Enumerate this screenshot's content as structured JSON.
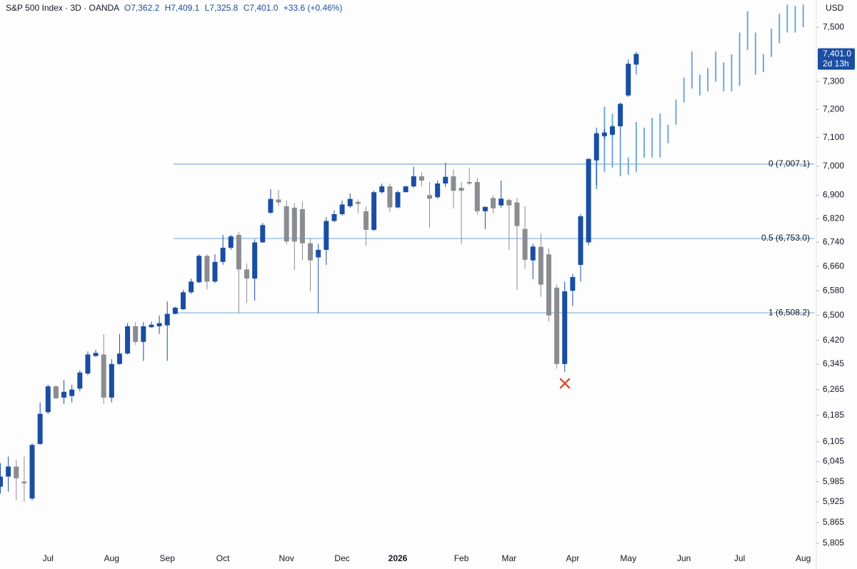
{
  "chart_data": {
    "type": "candlestick",
    "title": "S&P 500 Index · 3D · OANDA",
    "legend_values": [
      "O7,362.2",
      "H7,409.1",
      "L7,325.8",
      "C7,401.0",
      "+33.6 (+0.46%)"
    ],
    "y_unit": "USD",
    "categories": [
      null,
      null,
      null,
      null,
      null,
      null,
      "Jul",
      null,
      null,
      null,
      null,
      null,
      null,
      null,
      "Aug",
      null,
      null,
      null,
      null,
      null,
      null,
      "Sep",
      null,
      null,
      null,
      null,
      null,
      null,
      "Oct",
      null,
      null,
      null,
      null,
      null,
      null,
      null,
      "Nov",
      null,
      null,
      null,
      null,
      null,
      null,
      "Dec",
      null,
      null,
      null,
      null,
      null,
      null,
      "2026",
      null,
      null,
      null,
      null,
      null,
      null,
      null,
      "Feb",
      null,
      null,
      null,
      null,
      null,
      "Mar",
      null,
      null,
      null,
      null,
      null,
      null,
      null,
      "Apr",
      null,
      null,
      null,
      null,
      null,
      null,
      "May",
      null,
      null,
      null,
      null,
      null,
      null,
      "Jun",
      null,
      null,
      null,
      null,
      null,
      null,
      "Jul",
      null,
      null,
      null,
      null,
      null,
      null,
      null,
      "Aug"
    ],
    "open": [
      5970,
      6000,
      6030,
      5985,
      5935,
      6098,
      6195,
      6275,
      6240,
      6245,
      6268,
      6315,
      6370,
      6375,
      6240,
      6345,
      6378,
      6465,
      6415,
      6462,
      6465,
      6468,
      6505,
      6520,
      6575,
      6608,
      6695,
      6610,
      6675,
      6722,
      6765,
      6650,
      6620,
      6740,
      6840,
      6885,
      6862,
      6857,
      6852,
      6737,
      6690,
      6715,
      6812,
      6835,
      6862,
      6877,
      6845,
      6782,
      6910,
      6930,
      6858,
      6910,
      6930,
      6965,
      6900,
      6893,
      6940,
      6965,
      6925,
      6945,
      6945,
      6845,
      6890,
      6865,
      6883,
      6875,
      6785,
      6680,
      6725,
      6700,
      6590,
      6345,
      6580,
      6665,
      6740,
      7020,
      7105,
      7110,
      7140,
      7250,
      7362.2,
      null,
      null,
      null,
      null,
      null,
      null,
      null,
      null,
      null,
      null,
      null,
      null,
      null,
      null,
      null,
      null,
      null,
      null,
      null,
      null,
      null
    ],
    "high": [
      6040,
      6060,
      6050,
      6060,
      6100,
      6225,
      6280,
      6278,
      6295,
      6280,
      6325,
      6385,
      6390,
      6440,
      6360,
      6440,
      6475,
      6478,
      6478,
      6480,
      6500,
      6545,
      6528,
      6582,
      6620,
      6700,
      6700,
      6700,
      6765,
      6765,
      6775,
      6670,
      6750,
      6805,
      6920,
      6918,
      6882,
      6872,
      6878,
      6755,
      6735,
      6825,
      6848,
      6882,
      6905,
      6885,
      6862,
      6915,
      6940,
      6940,
      6915,
      6932,
      6998,
      6978,
      6945,
      6950,
      7012,
      6988,
      6945,
      6995,
      6960,
      6860,
      6900,
      6950,
      6888,
      6890,
      6862,
      6735,
      6770,
      6720,
      6600,
      6610,
      6635,
      6835,
      7028,
      7135,
      7130,
      7145,
      7225,
      7380,
      7409.1,
      null,
      null,
      null,
      null,
      null,
      null,
      null,
      null,
      null,
      null,
      null,
      null,
      null,
      null,
      null,
      null,
      null,
      null,
      null,
      null,
      null
    ],
    "low": [
      5950,
      5955,
      5930,
      5925,
      5930,
      6095,
      6190,
      6235,
      6220,
      6225,
      6260,
      6310,
      6368,
      6220,
      6225,
      6343,
      6375,
      6405,
      6355,
      6460,
      6440,
      6355,
      6503,
      6518,
      6570,
      6605,
      6585,
      6605,
      6665,
      6715,
      6508,
      6540,
      6548,
      6738,
      6836,
      6862,
      6733,
      6648,
      6680,
      6578,
      6508,
      6665,
      6808,
      6830,
      6857,
      6838,
      6728,
      6778,
      6905,
      6842,
      6855,
      6910,
      6925,
      6930,
      6790,
      6888,
      6928,
      6855,
      6733,
      6935,
      6835,
      6785,
      6838,
      6857,
      6715,
      6582,
      6652,
      6618,
      6560,
      6480,
      6330,
      6320,
      6530,
      6610,
      6730,
      6935,
      7095,
      7105,
      7105,
      7245,
      7325.8,
      null,
      null,
      null,
      null,
      null,
      null,
      null,
      null,
      null,
      null,
      null,
      null,
      null,
      null,
      null,
      null,
      null,
      null,
      null,
      null,
      null
    ],
    "close": [
      6000,
      6030,
      5995,
      5980,
      6095,
      6190,
      6275,
      6238,
      6258,
      6265,
      6318,
      6375,
      6380,
      6240,
      6345,
      6378,
      6465,
      6415,
      6465,
      6470,
      6475,
      6505,
      6525,
      6575,
      6610,
      6695,
      6610,
      6675,
      6722,
      6760,
      6650,
      6620,
      6740,
      6798,
      6887,
      6875,
      6743,
      6743,
      6737,
      6680,
      6715,
      6812,
      6835,
      6868,
      6887,
      6870,
      6782,
      6910,
      6930,
      6858,
      6910,
      6930,
      6965,
      6950,
      6888,
      6940,
      6963,
      6915,
      6915,
      6940,
      6845,
      6860,
      6855,
      6888,
      6865,
      6795,
      6682,
      6726,
      6600,
      6500,
      6345,
      6578,
      6625,
      6828,
      7025,
      7115,
      7118,
      7140,
      7220,
      7365,
      7401.0,
      null,
      null,
      null,
      null,
      null,
      null,
      null,
      null,
      null,
      null,
      null,
      null,
      null,
      null,
      null,
      null,
      null,
      null,
      null,
      null,
      null
    ],
    "up_color": "#1a4ea3",
    "down_color": "#8b8c91",
    "projection": {
      "color": "#72a7dc",
      "high": [
        null,
        null,
        null,
        null,
        null,
        null,
        null,
        null,
        null,
        null,
        null,
        null,
        null,
        null,
        null,
        null,
        null,
        null,
        null,
        null,
        null,
        null,
        null,
        null,
        null,
        null,
        null,
        null,
        null,
        null,
        null,
        null,
        null,
        null,
        null,
        null,
        null,
        null,
        null,
        null,
        null,
        null,
        null,
        null,
        null,
        null,
        null,
        null,
        null,
        null,
        null,
        null,
        null,
        null,
        null,
        null,
        null,
        null,
        null,
        null,
        null,
        null,
        null,
        null,
        null,
        null,
        null,
        null,
        null,
        null,
        null,
        null,
        null,
        null,
        null,
        7120,
        7210,
        7185,
        7105,
        7030,
        7155,
        7135,
        7170,
        7185,
        7145,
        7235,
        7315,
        7410,
        7325,
        7350,
        7410,
        7370,
        7400,
        7480,
        7560,
        7480,
        7400,
        7495,
        7550,
        7585,
        7580,
        7585
      ],
      "low": [
        null,
        null,
        null,
        null,
        null,
        null,
        null,
        null,
        null,
        null,
        null,
        null,
        null,
        null,
        null,
        null,
        null,
        null,
        null,
        null,
        null,
        null,
        null,
        null,
        null,
        null,
        null,
        null,
        null,
        null,
        null,
        null,
        null,
        null,
        null,
        null,
        null,
        null,
        null,
        null,
        null,
        null,
        null,
        null,
        null,
        null,
        null,
        null,
        null,
        null,
        null,
        null,
        null,
        null,
        null,
        null,
        null,
        null,
        null,
        null,
        null,
        null,
        null,
        null,
        null,
        null,
        null,
        null,
        null,
        null,
        null,
        null,
        null,
        null,
        null,
        6920,
        6980,
        6995,
        6965,
        6970,
        6980,
        7030,
        7030,
        7030,
        7080,
        7145,
        7225,
        7275,
        7250,
        7265,
        7300,
        7265,
        7265,
        7285,
        7415,
        7325,
        7335,
        7390,
        7440,
        7480,
        7480,
        7500
      ]
    },
    "levels": [
      {
        "label": "0 (7,007.1)",
        "value": 7007.1
      },
      {
        "label": "0.5 (6,753.0)",
        "value": 6753.0
      },
      {
        "label": "1 (6,508.2)",
        "value": 6508.2
      }
    ],
    "level_color": "#7fb0de",
    "last_price": {
      "value": 7401.0,
      "label": "7,401.0"
    },
    "countdown": "2d 13h",
    "log_scale": true,
    "ylim": [
      5786,
      7602
    ],
    "yticks": [
      {
        "value": 7500,
        "label": "7,500"
      },
      {
        "value": 7300,
        "label": "7,300"
      },
      {
        "value": 7200,
        "label": "7,200"
      },
      {
        "value": 7100,
        "label": "7,100"
      },
      {
        "value": 7000,
        "label": "7,000"
      },
      {
        "value": 6900,
        "label": "6,900"
      },
      {
        "value": 6820,
        "label": "6,820"
      },
      {
        "value": 6740,
        "label": "6,740"
      },
      {
        "value": 6660,
        "label": "6,660"
      },
      {
        "value": 6580,
        "label": "6,580"
      },
      {
        "value": 6500,
        "label": "6,500"
      },
      {
        "value": 6420,
        "label": "6,420"
      },
      {
        "value": 6345,
        "label": "6,345"
      },
      {
        "value": 6265,
        "label": "6,265"
      },
      {
        "value": 6185,
        "label": "6,185"
      },
      {
        "value": 6105,
        "label": "6,105"
      },
      {
        "value": 6045,
        "label": "6,045"
      },
      {
        "value": 5985,
        "label": "5,985"
      },
      {
        "value": 5925,
        "label": "5,925"
      },
      {
        "value": 5865,
        "label": "5,865"
      },
      {
        "value": 5805,
        "label": "5,805"
      }
    ]
  }
}
